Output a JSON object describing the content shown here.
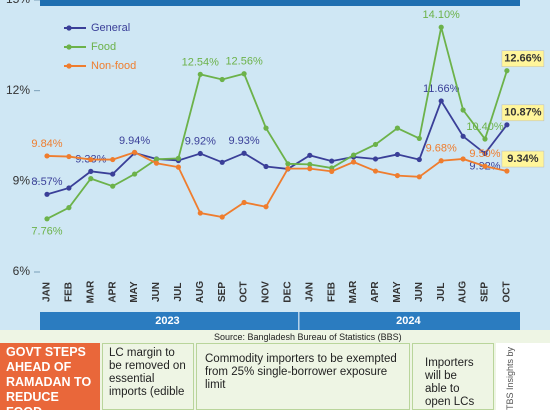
{
  "chart_data": {
    "type": "line",
    "categories": [
      "JAN",
      "FEB",
      "MAR",
      "APR",
      "MAY",
      "JUN",
      "JUL",
      "AUG",
      "SEP",
      "OCT",
      "NOV",
      "DEC",
      "JAN",
      "FEB",
      "MAR",
      "APR",
      "MAY",
      "JUN",
      "JUL",
      "AUG",
      "SEP",
      "OCT"
    ],
    "x_groups": [
      "2023",
      "2024"
    ],
    "series": [
      {
        "name": "General",
        "color": "#3a3f98",
        "values": [
          8.57,
          8.78,
          9.33,
          9.24,
          9.94,
          9.74,
          9.69,
          9.92,
          9.63,
          9.93,
          9.49,
          9.41,
          9.86,
          9.67,
          9.81,
          9.74,
          9.89,
          9.72,
          11.66,
          10.49,
          9.92,
          10.87
        ],
        "value_labels": [
          "8.57%",
          null,
          "9.33%",
          null,
          "9.94%",
          null,
          null,
          "9.92%",
          null,
          "9.93%",
          null,
          null,
          null,
          null,
          null,
          null,
          null,
          null,
          "11.66%",
          null,
          "9.92%",
          "10.87%"
        ]
      },
      {
        "name": "Food",
        "color": "#6cb24a",
        "values": [
          7.76,
          8.13,
          9.09,
          8.84,
          9.24,
          9.73,
          9.76,
          12.54,
          12.37,
          12.56,
          10.76,
          9.58,
          9.56,
          9.44,
          9.87,
          10.22,
          10.76,
          10.42,
          14.1,
          11.36,
          10.4,
          12.66
        ],
        "value_labels": [
          "7.76%",
          null,
          null,
          null,
          null,
          null,
          null,
          "12.54%",
          null,
          "12.56%",
          null,
          null,
          null,
          null,
          null,
          null,
          null,
          null,
          "14.10%",
          null,
          "10.40%",
          "12.66%"
        ]
      },
      {
        "name": "Non-food",
        "color": "#ef7d2e",
        "values": [
          9.84,
          9.82,
          9.72,
          9.72,
          9.96,
          9.6,
          9.47,
          7.95,
          7.82,
          8.3,
          8.16,
          9.42,
          9.42,
          9.33,
          9.64,
          9.34,
          9.19,
          9.15,
          9.68,
          9.74,
          9.5,
          9.34
        ],
        "value_labels": [
          "9.84%",
          null,
          null,
          null,
          null,
          null,
          null,
          null,
          null,
          null,
          null,
          null,
          null,
          null,
          null,
          null,
          null,
          null,
          "9.68%",
          null,
          "9.50%",
          "9.34%"
        ]
      }
    ],
    "ylim": [
      6,
      15
    ],
    "yticks": [
      {
        "value": 6,
        "label": "6%"
      },
      {
        "value": 9,
        "label": "9%"
      },
      {
        "value": 12,
        "label": "12%"
      },
      {
        "value": 15,
        "label": "15%"
      }
    ],
    "legend": "upper left",
    "source": "Source: Bangladesh Bureau of Statistics (BBS)"
  },
  "panel": {
    "headline": "GOVT STEPS AHEAD OF RAMADAN TO REDUCE FOOD",
    "items": [
      "LC margin to be removed on essential imports (edible",
      "Commodity importers to be exempted from 25% single-borrower exposure limit",
      "Importers will be able to open LCs for any"
    ],
    "credit": "TBS Insights by"
  }
}
